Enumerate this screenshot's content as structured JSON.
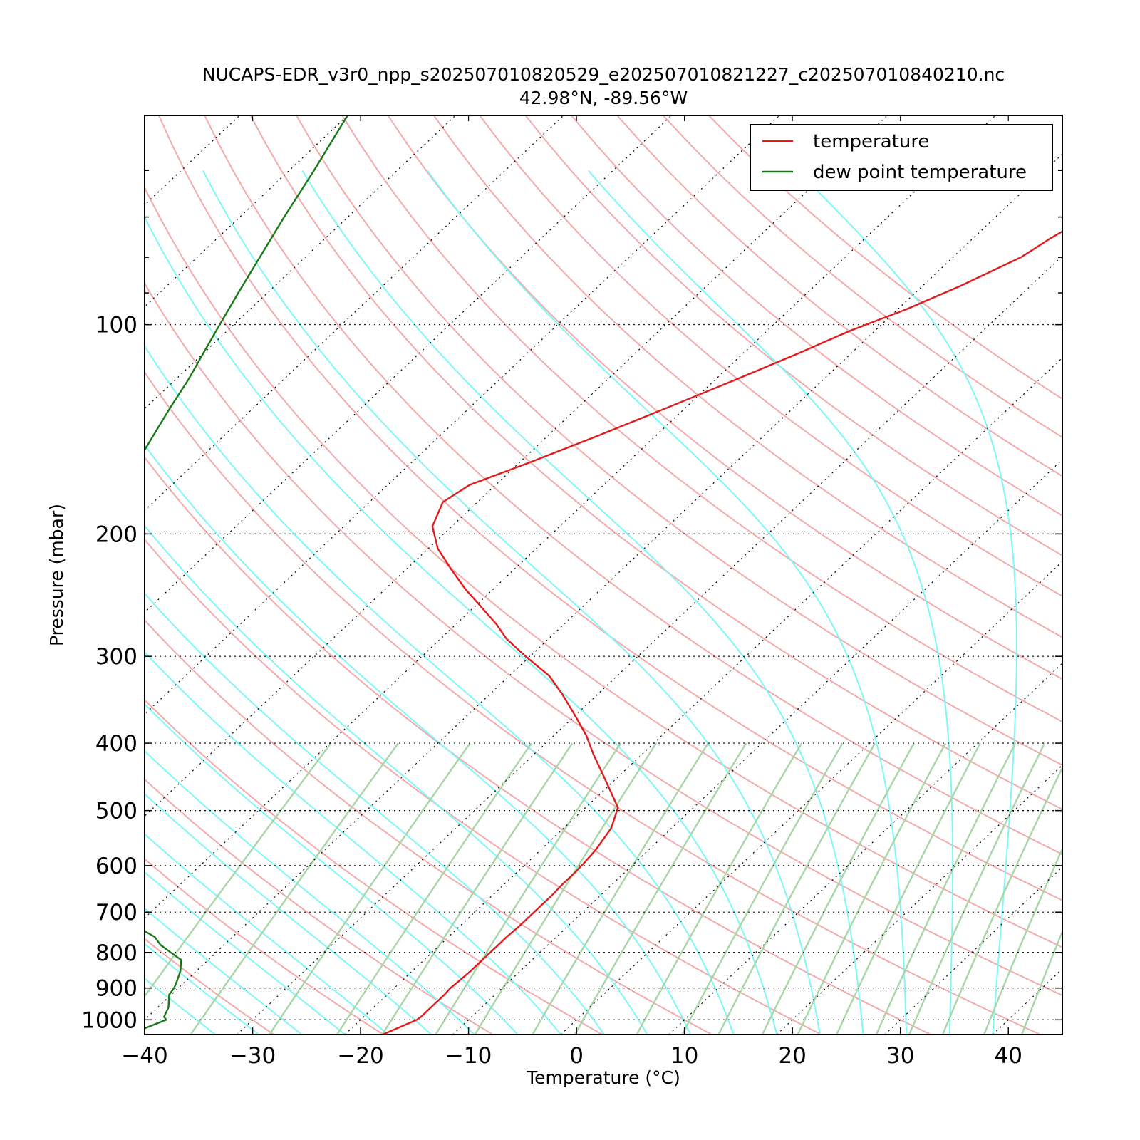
{
  "chart_data": {
    "type": "line",
    "title": "NUCAPS-EDR_v3r0_npp_s202507010820529_e202507010821227_c202507010840210.nc",
    "subtitle": "42.98°N, -89.56°W",
    "xlabel": "Temperature (°C)",
    "ylabel": "Pressure (mbar)",
    "xlim": [
      -40,
      45
    ],
    "ylim": [
      1050,
      50
    ],
    "y_scale": "log",
    "skew": "skew-T",
    "grid": true,
    "legend_position": "top-right",
    "x_ticks": [
      "−40",
      "−30",
      "−20",
      "−10",
      "0",
      "10",
      "20",
      "30",
      "40"
    ],
    "y_ticks": [
      "100",
      "200",
      "300",
      "400",
      "500",
      "600",
      "700",
      "800",
      "900",
      "1000"
    ],
    "colors": {
      "temperature": "#e31a1c",
      "dewpoint": "#1a7a1a",
      "dry_adiabat": "#f4aaaa",
      "moist_adiabat": "#7ff7f7",
      "mixing_ratio": "#a8d6a8",
      "isotherm": "#000000"
    },
    "series": [
      {
        "name": "temperature",
        "pressure": [
          1050,
          1000,
          990,
          960,
          920,
          900,
          880,
          850,
          820,
          780,
          760,
          735,
          705,
          685,
          660,
          640,
          615,
          595,
          570,
          530,
          495,
          470,
          440,
          415,
          390,
          365,
          340,
          320,
          300,
          283,
          270,
          255,
          240,
          225,
          210,
          195,
          180,
          170,
          158,
          145,
          132,
          120,
          110,
          102,
          95,
          88,
          80,
          75,
          70,
          62,
          55,
          50
        ],
        "values": [
          -16.5,
          -14.8,
          -14.7,
          -14.7,
          -14.7,
          -14.8,
          -14.7,
          -14.6,
          -14.6,
          -14.6,
          -14.6,
          -14.5,
          -14.5,
          -14.5,
          -14.5,
          -14.6,
          -14.6,
          -14.7,
          -14.9,
          -15.6,
          -17,
          -19.2,
          -22,
          -24.5,
          -27,
          -30,
          -33.3,
          -36.3,
          -40.4,
          -43.9,
          -46.2,
          -49.3,
          -52.6,
          -55.8,
          -59.1,
          -61.8,
          -63.2,
          -62.4,
          -59.1,
          -55.5,
          -51.8,
          -48.1,
          -44.9,
          -42.3,
          -39.2,
          -36.5,
          -33.7,
          -32.8,
          -31.5,
          -30.2,
          -29.1,
          -28.8
        ]
      },
      {
        "name": "dew point temperature",
        "pressure": [
          1050,
          1000,
          990,
          960,
          920,
          900,
          880,
          850,
          820,
          800,
          780,
          760,
          735,
          705,
          685,
          660,
          640,
          615,
          595,
          570,
          530,
          495,
          470,
          440,
          415,
          390,
          365,
          340,
          320,
          300,
          283,
          270,
          255,
          240,
          225,
          210,
          195,
          180,
          170,
          158,
          145,
          132,
          120,
          110,
          100,
          90,
          80,
          70,
          60,
          50
        ],
        "values": [
          -40,
          -38,
          -38.5,
          -39,
          -40.2,
          -40.4,
          -40.8,
          -41.5,
          -42.5,
          -44.2,
          -45.9,
          -47.2,
          -49.8,
          -52.5,
          -55,
          -57.8,
          -59.7,
          -61.1,
          -62.2,
          -63.9,
          -66,
          -68.2,
          -70.2,
          -72.3,
          -74,
          -76.1,
          -78.2,
          -80.3,
          -82,
          -83.9,
          -85.7,
          -87.1,
          -88.6,
          -90,
          -91.3,
          -92.4,
          -93.5,
          -94.5,
          -95,
          -95.4,
          -96.5,
          -97.7,
          -98.8,
          -100,
          -101.3,
          -102.7,
          -104.2,
          -105.9,
          -107.7,
          -110
        ]
      }
    ]
  }
}
